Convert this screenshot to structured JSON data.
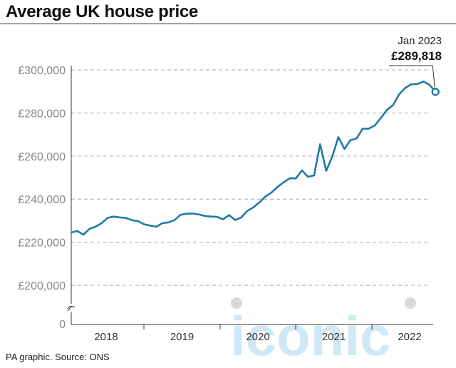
{
  "title": "Average UK house price",
  "source": "PA graphic. Source: ONS",
  "colors": {
    "line": "#1f7aa5",
    "grid": "#aaaaaa",
    "axis": "#333333",
    "tick_label": "#888888",
    "watermark": "#cfe8f6"
  },
  "watermark": "iconic",
  "chart_data": {
    "type": "line",
    "title": "Average UK house price",
    "xlabel": "",
    "ylabel": "",
    "ylim": [
      200000,
      300000
    ],
    "y_ticks": [
      200000,
      220000,
      240000,
      260000,
      280000,
      300000
    ],
    "y_tick_labels": [
      "£200,000",
      "£220,000",
      "£240,000",
      "£260,000",
      "£280,000",
      "£300,000"
    ],
    "y_break_label": "0",
    "x_tick_labels": [
      "2018",
      "2019",
      "2020",
      "2021",
      "2022"
    ],
    "grid": true,
    "annotation": {
      "date_label": "Jan 2023",
      "value_label": "£289,818",
      "value": 289818
    },
    "series": [
      {
        "values": [
          224500,
          225200,
          223500,
          226200,
          227200,
          228800,
          231300,
          231900,
          231500,
          231300,
          230200,
          229800,
          228300,
          227700,
          227200,
          228800,
          229200,
          230200,
          232700,
          233200,
          233300,
          232900,
          232200,
          231900,
          231800,
          230600,
          232600,
          230300,
          231500,
          234500,
          236200,
          238500,
          241200,
          243100,
          245700,
          247800,
          249700,
          249600,
          253300,
          250400,
          251000,
          265500,
          253100,
          259800,
          268800,
          263300,
          267400,
          268100,
          272700,
          272700,
          274200,
          277600,
          281400,
          283600,
          288600,
          291600,
          293300,
          293400,
          294600,
          293100,
          289818
        ]
      }
    ]
  }
}
